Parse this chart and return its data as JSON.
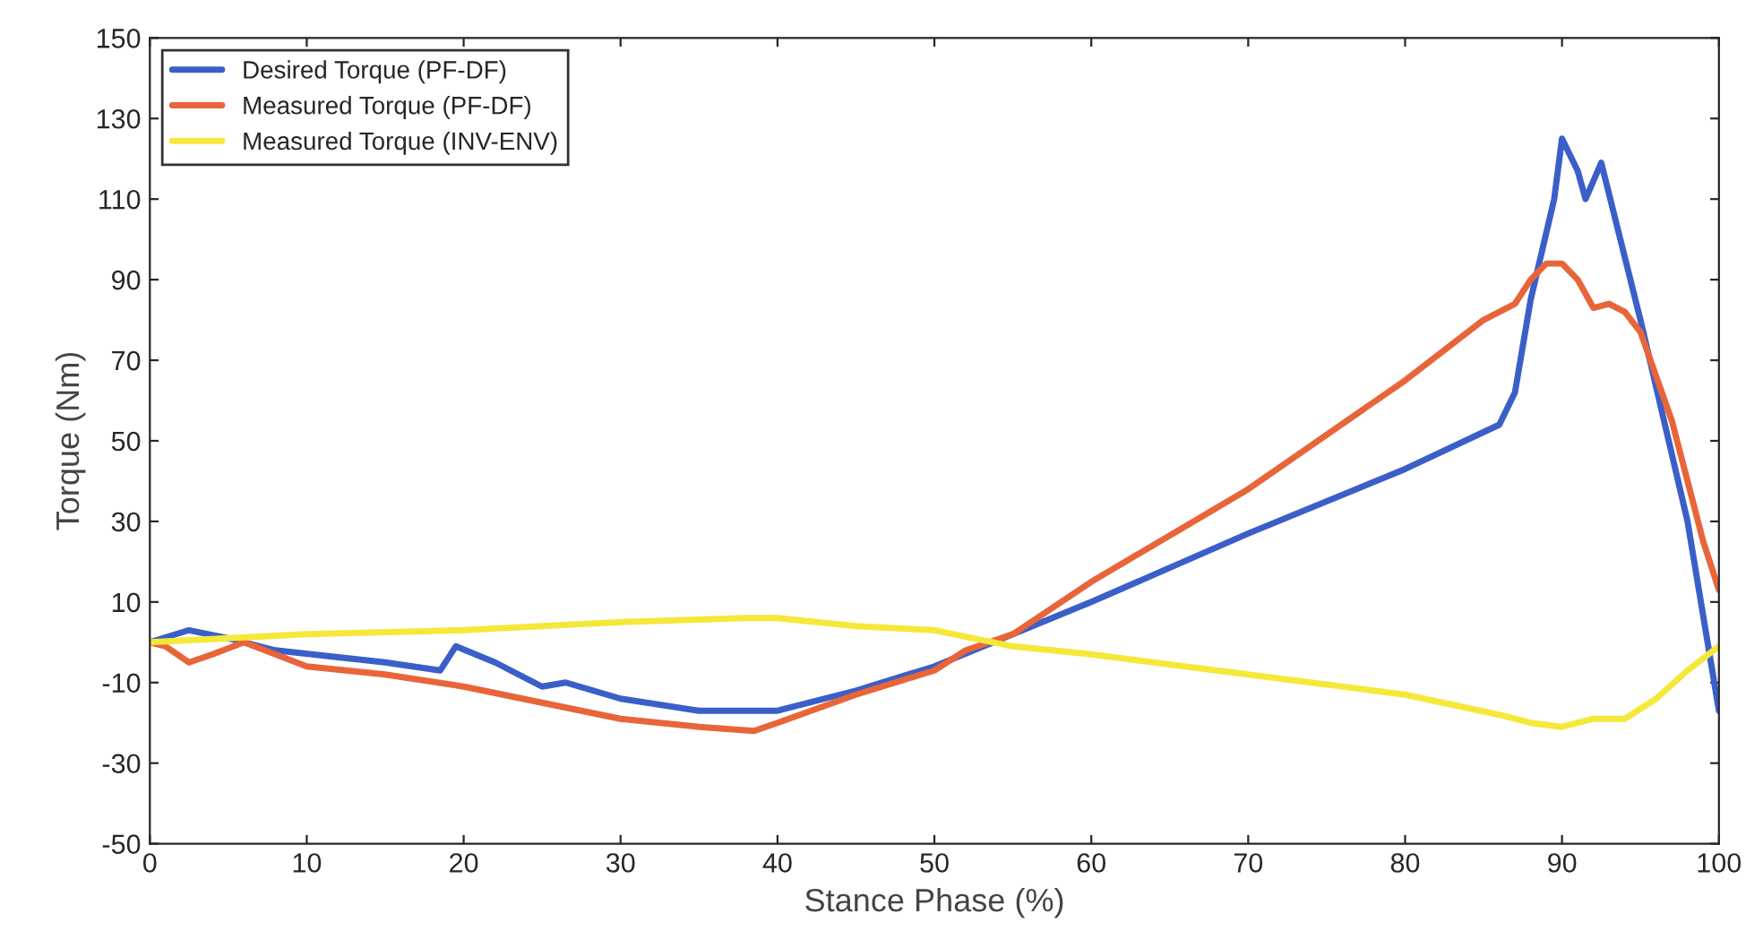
{
  "chart_data": {
    "type": "line",
    "xlabel": "Stance Phase (%)",
    "ylabel": "Torque (Nm)",
    "xlim": [
      0,
      100
    ],
    "ylim": [
      -50,
      150
    ],
    "xticks": [
      0,
      10,
      20,
      30,
      40,
      50,
      60,
      70,
      80,
      90,
      100
    ],
    "yticks": [
      -50,
      -30,
      -10,
      10,
      30,
      50,
      70,
      90,
      110,
      130,
      150
    ],
    "grid": false,
    "legend": "top left",
    "line_style": "solid",
    "marker": "none",
    "series": [
      {
        "name": "Desired Torque (PF-DF)",
        "color": "#3a5fc8",
        "x": [
          0,
          2.5,
          5,
          8,
          15,
          18.5,
          19.5,
          22,
          25,
          26.5,
          30,
          35,
          40,
          45,
          50,
          55,
          60,
          70,
          80,
          86,
          87,
          88,
          89.5,
          90,
          91,
          91.5,
          92.5,
          95,
          98,
          100
        ],
        "values": [
          0,
          3,
          1,
          -2,
          -5,
          -7,
          -1,
          -5,
          -11,
          -10,
          -14,
          -17,
          -17,
          -12,
          -6,
          2,
          10,
          27,
          43,
          54,
          62,
          85,
          110,
          125,
          117,
          110,
          119,
          80,
          30,
          -17
        ]
      },
      {
        "name": "Measured Torque (PF-DF)",
        "color": "#e8653a",
        "x": [
          0,
          1,
          2.5,
          4,
          6,
          8,
          10,
          15,
          20,
          25,
          30,
          35,
          38.5,
          40,
          45,
          50,
          52,
          55,
          60,
          70,
          80,
          85,
          87,
          88,
          89,
          90,
          91,
          92,
          93,
          94,
          95,
          97,
          99,
          100
        ],
        "values": [
          0,
          -1,
          -5,
          -3,
          0,
          -3,
          -6,
          -8,
          -11,
          -15,
          -19,
          -21,
          -22,
          -20,
          -13,
          -7,
          -2,
          2,
          15,
          38,
          65,
          80,
          84,
          90,
          94,
          94,
          90,
          83,
          84,
          82,
          77,
          55,
          25,
          13
        ]
      },
      {
        "name": "Measured Torque (INV-ENV)",
        "color": "#f5e83a",
        "x": [
          0,
          5,
          10,
          20,
          30,
          38,
          40,
          45,
          50,
          55,
          60,
          70,
          80,
          86,
          88,
          90,
          92,
          94,
          96,
          98,
          100
        ],
        "values": [
          0,
          1,
          2,
          3,
          5,
          6,
          6,
          4,
          3,
          -1,
          -3,
          -8,
          -13,
          -18,
          -20,
          -21,
          -19,
          -19,
          -14,
          -7,
          -1
        ]
      }
    ]
  }
}
